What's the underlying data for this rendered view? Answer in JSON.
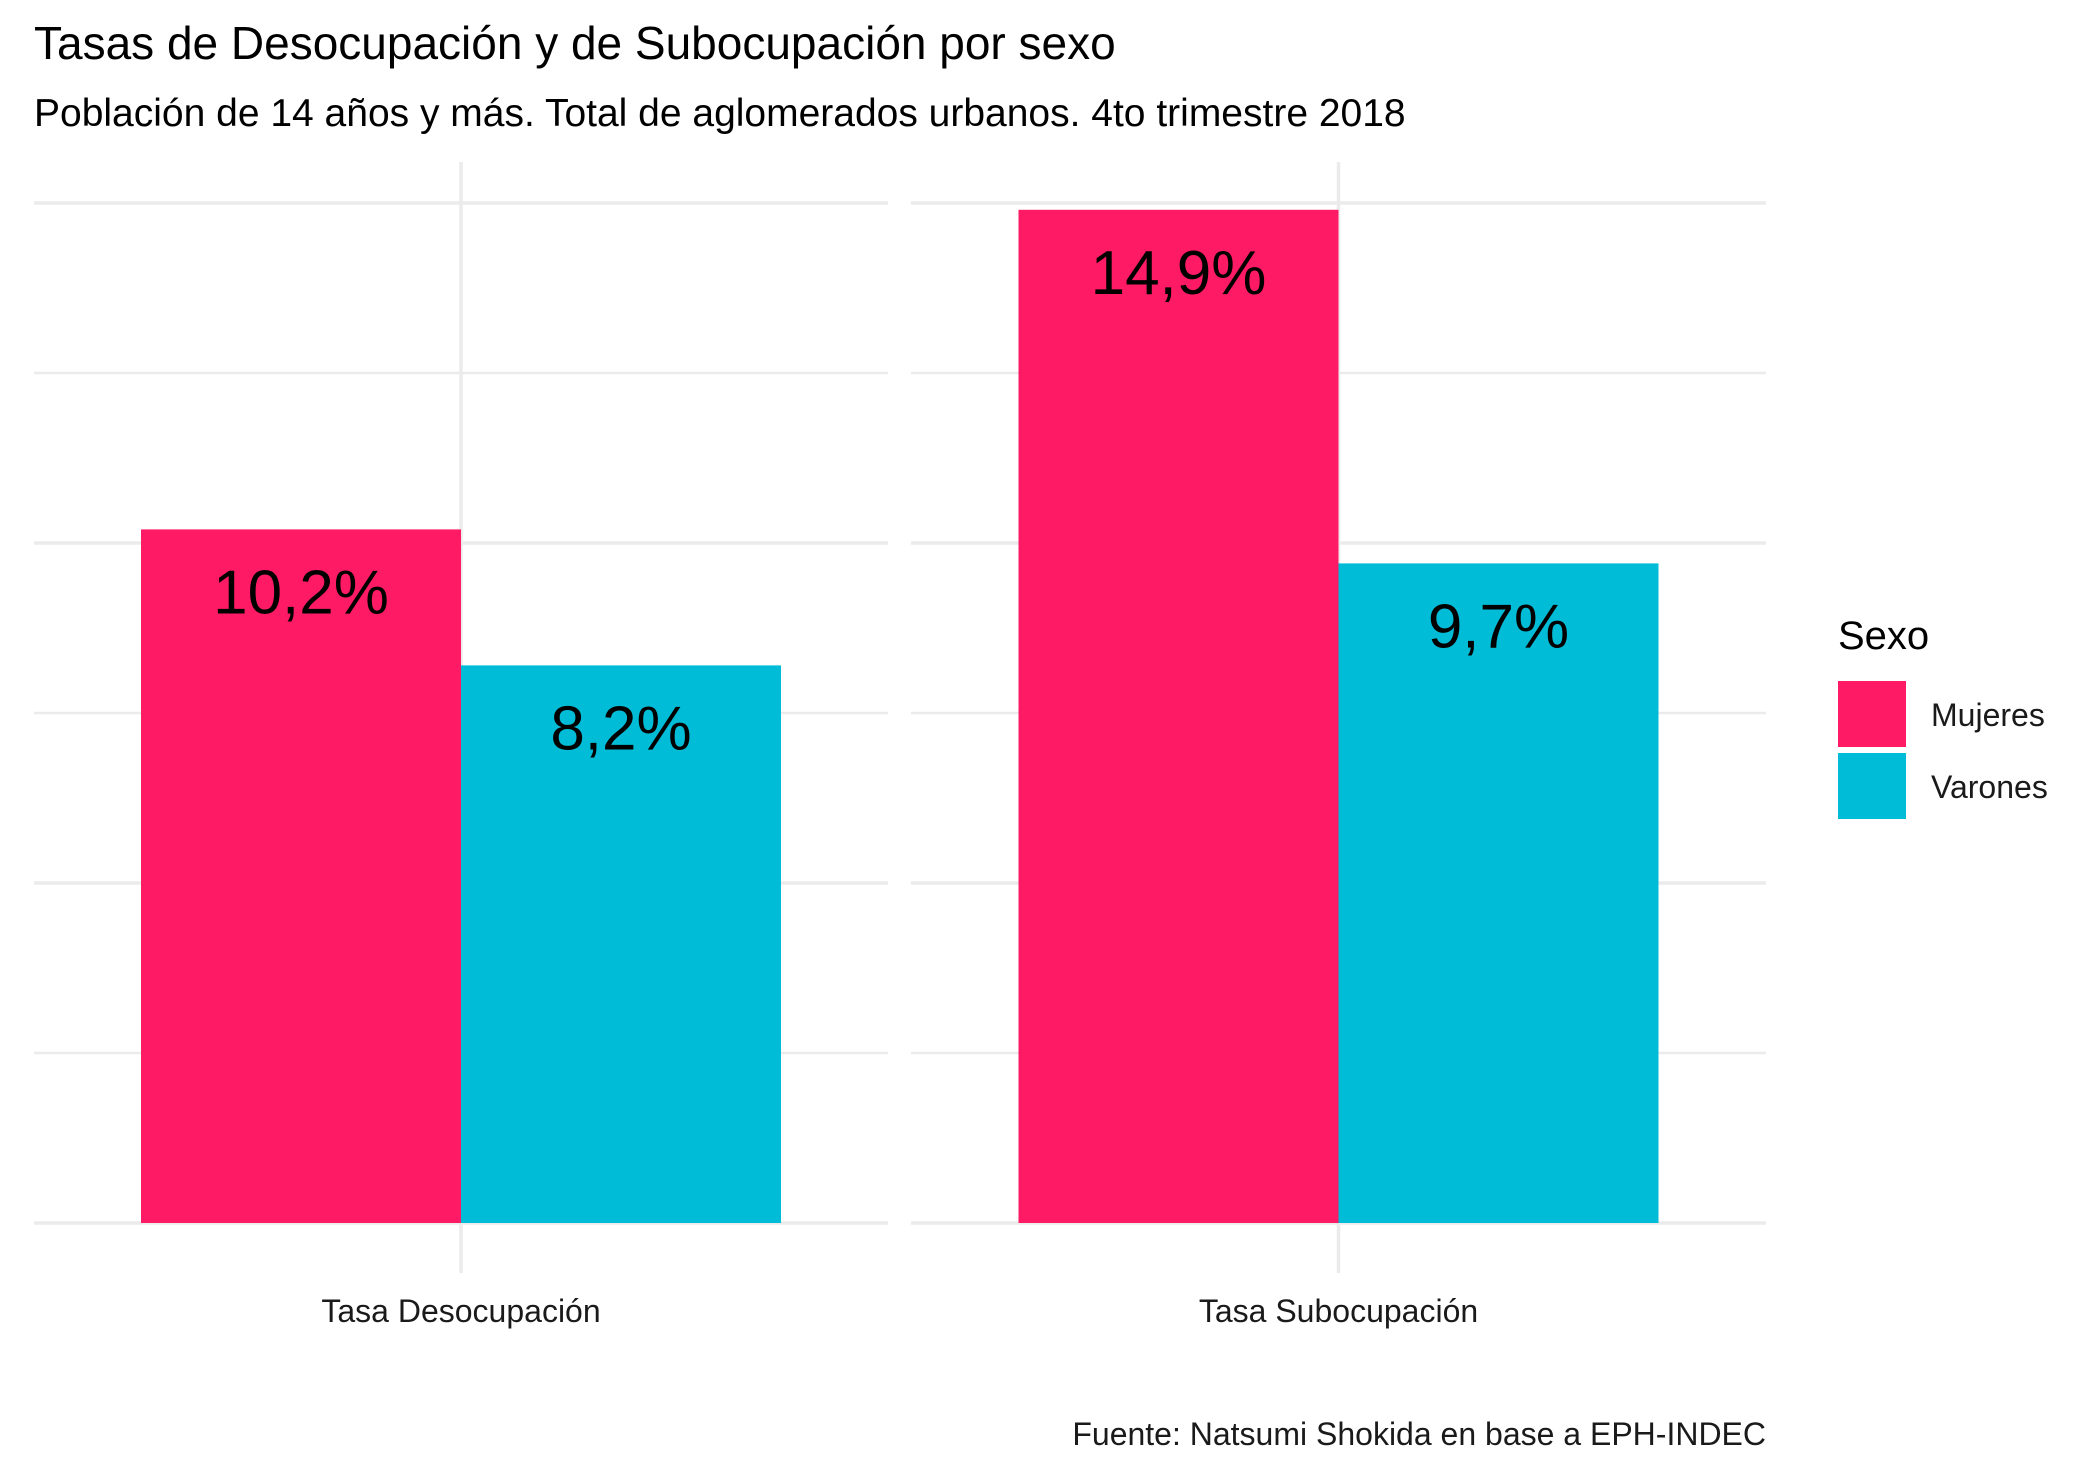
{
  "chart_data": {
    "type": "bar",
    "title": "Tasas de Desocupación y de Subocupación por sexo",
    "subtitle": "Población de 14 años y más. Total de aglomerados urbanos. 4to trimestre 2018",
    "caption": "Fuente: Natsumi Shokida en base a EPH-INDEC",
    "categories": [
      "Tasa Desocupación",
      "Tasa Subocupación"
    ],
    "series": [
      {
        "name": "Mujeres",
        "color": "#ff1a66",
        "values": [
          10.2,
          14.9
        ],
        "labels": [
          "10,2%",
          "14,9%"
        ]
      },
      {
        "name": "Varones",
        "color": "#00bcd6",
        "values": [
          8.2,
          9.7
        ],
        "labels": [
          "8,2%",
          "9,7%"
        ]
      }
    ],
    "legend": {
      "title": "Sexo",
      "position": "right"
    },
    "ylim": [
      0,
      15
    ],
    "grid": true,
    "y_axis_text": false,
    "facets": true
  }
}
